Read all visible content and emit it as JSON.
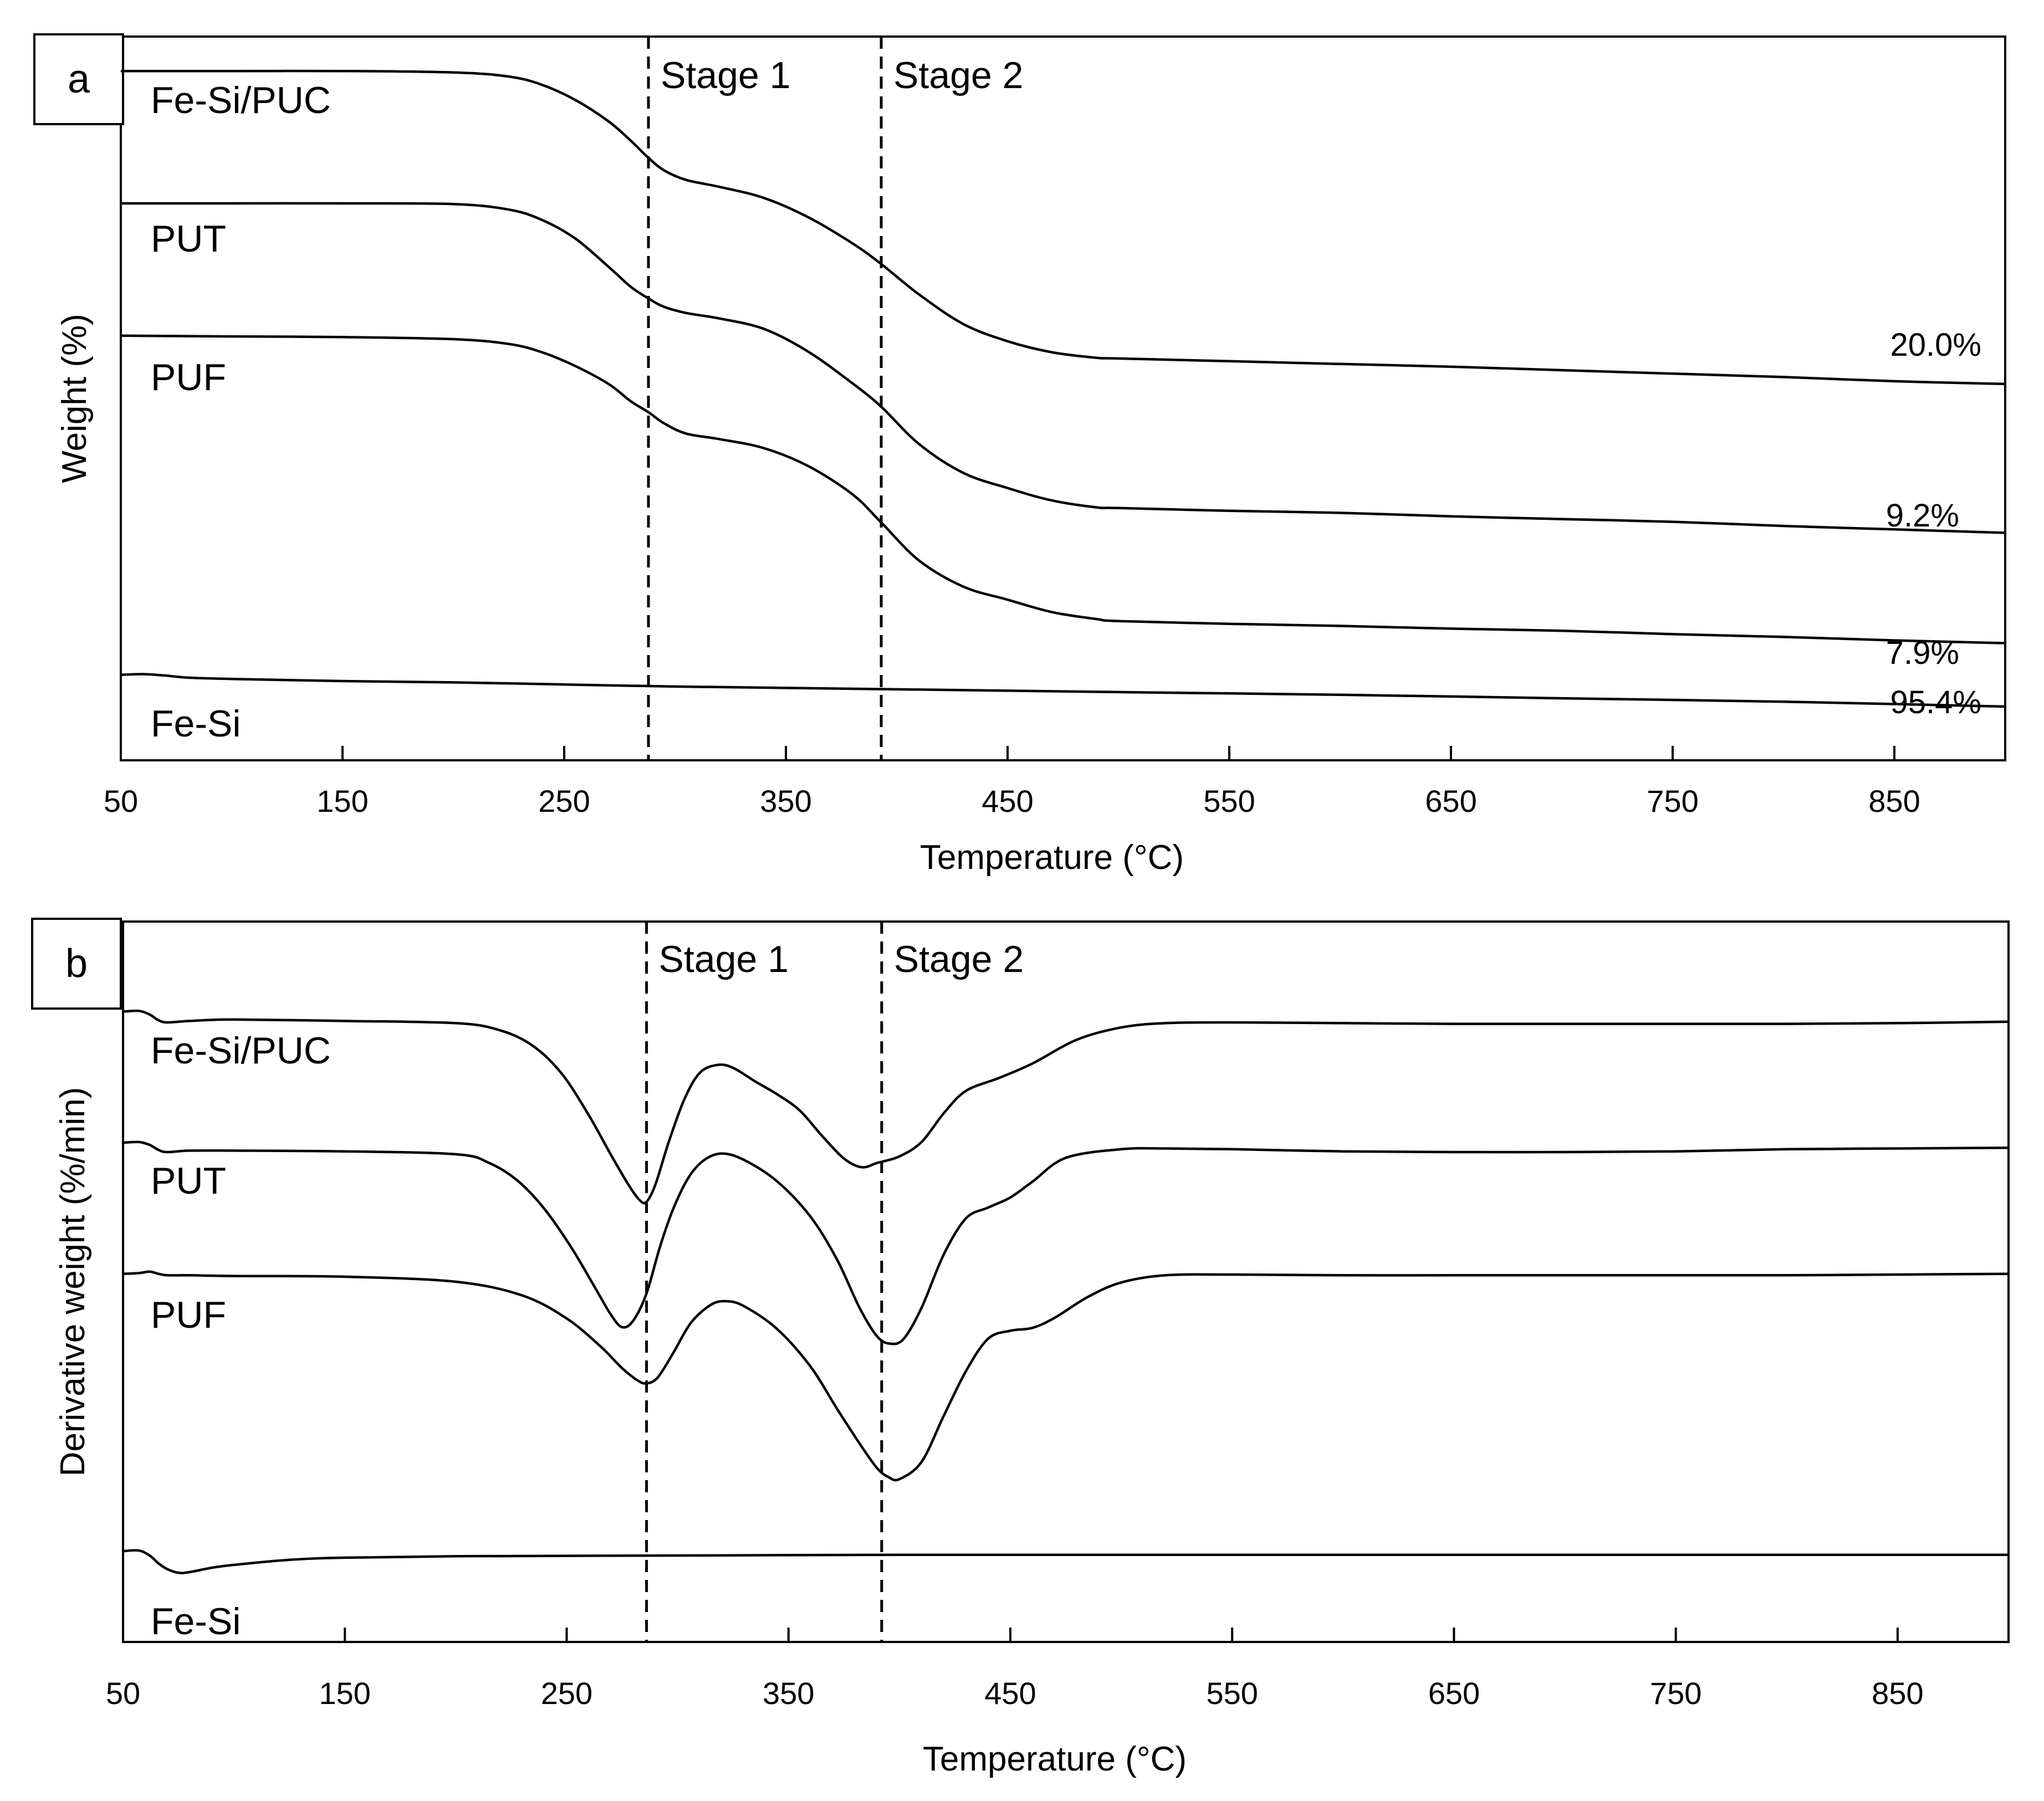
{
  "chart_data": [
    {
      "type": "line",
      "panel_label": "a",
      "xlabel": "Temperature  (°C)",
      "ylabel": "Weight (%)",
      "xlim": [
        50,
        900
      ],
      "x_ticks": [
        50,
        150,
        250,
        350,
        450,
        550,
        650,
        750,
        850
      ],
      "stage_lines": [
        {
          "label": "Stage 1",
          "x": 288
        },
        {
          "label": "Stage 2",
          "x": 393
        }
      ],
      "series": [
        {
          "name": "Fe-Si/PUC",
          "end_label": "20.0%",
          "x": [
            50,
            100,
            150,
            200,
            225,
            240,
            255,
            270,
            280,
            288,
            295,
            305,
            320,
            340,
            360,
            380,
            393,
            410,
            430,
            450,
            470,
            490,
            500,
            550,
            600,
            650,
            700,
            750,
            800,
            850,
            900
          ],
          "y": [
            100.0,
            100.0,
            100.0,
            99.8,
            99.2,
            98.0,
            95.8,
            92.7,
            89.9,
            87.4,
            85.6,
            84.2,
            83.2,
            81.6,
            78.8,
            75.0,
            72.0,
            67.6,
            63.3,
            60.8,
            59.2,
            58.4,
            58.3,
            57.9,
            57.5,
            57.1,
            56.6,
            56.1,
            55.6,
            55.0,
            54.6
          ]
        },
        {
          "name": "PUT",
          "end_label": "9.2%",
          "x": [
            50,
            100,
            150,
            200,
            225,
            240,
            255,
            270,
            280,
            288,
            295,
            305,
            320,
            340,
            360,
            380,
            393,
            410,
            430,
            450,
            470,
            490,
            500,
            550,
            600,
            650,
            700,
            750,
            800,
            850,
            900
          ],
          "y": [
            80.8,
            80.8,
            80.8,
            80.7,
            79.9,
            78.4,
            75.7,
            71.6,
            68.7,
            67.0,
            65.8,
            64.9,
            64.1,
            62.6,
            59.3,
            54.7,
            51.3,
            45.9,
            41.7,
            39.5,
            37.7,
            36.7,
            36.6,
            36.2,
            35.9,
            35.4,
            35.0,
            34.6,
            34.0,
            33.5,
            33.0
          ]
        },
        {
          "name": "PUF",
          "end_label": "7.9%",
          "x": [
            50,
            100,
            150,
            200,
            225,
            240,
            255,
            270,
            280,
            288,
            295,
            305,
            320,
            340,
            360,
            380,
            393,
            410,
            430,
            450,
            470,
            490,
            500,
            550,
            600,
            650,
            700,
            750,
            800,
            850,
            900
          ],
          "y": [
            61.6,
            61.5,
            61.4,
            61.1,
            60.4,
            59.2,
            57.2,
            54.6,
            52.1,
            50.5,
            48.9,
            47.4,
            46.6,
            45.3,
            42.7,
            38.6,
            34.5,
            29.0,
            25.2,
            23.3,
            21.5,
            20.5,
            20.2,
            19.8,
            19.5,
            19.1,
            18.8,
            18.3,
            17.9,
            17.4,
            17.0
          ]
        },
        {
          "name": "Fe-Si",
          "end_label": "95.4%",
          "x": [
            50,
            60,
            70,
            80,
            100,
            150,
            200,
            250,
            300,
            400,
            500,
            600,
            700,
            800,
            900
          ],
          "y": [
            12.4,
            12.5,
            12.3,
            12.0,
            11.8,
            11.5,
            11.3,
            11.0,
            10.7,
            10.3,
            9.9,
            9.5,
            9.0,
            8.5,
            7.8
          ]
        }
      ]
    },
    {
      "type": "line",
      "panel_label": "b",
      "xlabel": "Temperature  (°C)",
      "ylabel": "Derivative weight (%/min)",
      "xlim": [
        50,
        900
      ],
      "x_ticks": [
        50,
        150,
        250,
        350,
        450,
        550,
        650,
        750,
        850
      ],
      "stage_lines": [
        {
          "label": "Stage 1",
          "x": 286
        },
        {
          "label": "Stage 2",
          "x": 392
        }
      ],
      "series": [
        {
          "name": "Fe-Si/PUC",
          "x": [
            50,
            57,
            62,
            66,
            70,
            80,
            100,
            150,
            200,
            220,
            235,
            248,
            260,
            270,
            278,
            283,
            286,
            290,
            296,
            303,
            310,
            318,
            325,
            335,
            345,
            355,
            365,
            375,
            383,
            390,
            400,
            410,
            420,
            430,
            445,
            460,
            480,
            500,
            520,
            550,
            600,
            650,
            700,
            750,
            800,
            850,
            900
          ],
          "y": [
            87.5,
            87.6,
            87.1,
            86.3,
            86.0,
            86.2,
            86.4,
            86.2,
            85.9,
            84.9,
            82.7,
            78.8,
            73.1,
            67.6,
            63.4,
            61.3,
            61.1,
            63.5,
            69.4,
            75.3,
            79.0,
            80.1,
            79.7,
            77.8,
            76.0,
            73.8,
            70.3,
            67.1,
            65.9,
            66.5,
            67.4,
            69.4,
            73.4,
            76.5,
            78.3,
            80.3,
            83.6,
            85.3,
            85.9,
            86.0,
            85.9,
            85.8,
            85.8,
            85.8,
            85.8,
            85.9,
            86.1
          ]
        },
        {
          "name": "PUT",
          "x": [
            50,
            57,
            62,
            66,
            70,
            80,
            100,
            150,
            200,
            215,
            228,
            240,
            252,
            262,
            270,
            275,
            280,
            286,
            292,
            298,
            305,
            312,
            320,
            330,
            345,
            360,
            372,
            382,
            390,
            396,
            402,
            410,
            420,
            430,
            440,
            450,
            460,
            475,
            500,
            520,
            550,
            600,
            650,
            700,
            750,
            800,
            850,
            900
          ],
          "y": [
            69.3,
            69.4,
            69.0,
            68.3,
            68.0,
            68.2,
            68.2,
            68.1,
            67.7,
            66.5,
            64.0,
            60.1,
            54.8,
            49.6,
            45.4,
            43.7,
            44.6,
            48.4,
            54.8,
            60.1,
            64.5,
            66.9,
            67.8,
            66.9,
            63.9,
            59.0,
            53.0,
            46.4,
            42.4,
            41.4,
            42.1,
            46.4,
            53.8,
            58.8,
            60.3,
            61.7,
            63.9,
            67.2,
            68.4,
            68.5,
            68.4,
            68.1,
            68.0,
            68.0,
            68.1,
            68.4,
            68.5,
            68.6
          ]
        },
        {
          "name": "PUF",
          "x": [
            50,
            57,
            62,
            66,
            70,
            80,
            100,
            150,
            200,
            230,
            250,
            265,
            275,
            282,
            286,
            291,
            298,
            306,
            315,
            322,
            330,
            345,
            360,
            372,
            383,
            390,
            395,
            400,
            410,
            420,
            430,
            440,
            450,
            460,
            470,
            485,
            500,
            520,
            550,
            600,
            650,
            700,
            750,
            800,
            850,
            900
          ],
          "y": [
            51.1,
            51.2,
            51.4,
            51.1,
            50.9,
            50.9,
            50.8,
            50.7,
            50.0,
            48.1,
            44.9,
            41.1,
            38.0,
            36.3,
            35.9,
            36.7,
            40.1,
            44.3,
            46.8,
            47.3,
            46.6,
            43.4,
            38.2,
            32.3,
            27.1,
            24.1,
            22.9,
            22.6,
            25.0,
            31.4,
            37.6,
            42.1,
            43.2,
            43.6,
            45.0,
            47.9,
            49.9,
            50.9,
            51.0,
            50.9,
            50.9,
            50.9,
            50.9,
            50.9,
            51.0,
            51.1
          ]
        },
        {
          "name": "Fe-Si",
          "x": [
            50,
            57,
            62,
            66,
            70,
            75,
            80,
            90,
            100,
            125,
            150,
            200,
            300,
            400,
            500,
            600,
            700,
            800,
            900
          ],
          "y": [
            12.6,
            12.7,
            12.0,
            10.9,
            10.1,
            9.6,
            9.7,
            10.3,
            10.7,
            11.4,
            11.7,
            11.9,
            12.0,
            12.1,
            12.1,
            12.1,
            12.1,
            12.1,
            12.1
          ]
        }
      ]
    }
  ]
}
